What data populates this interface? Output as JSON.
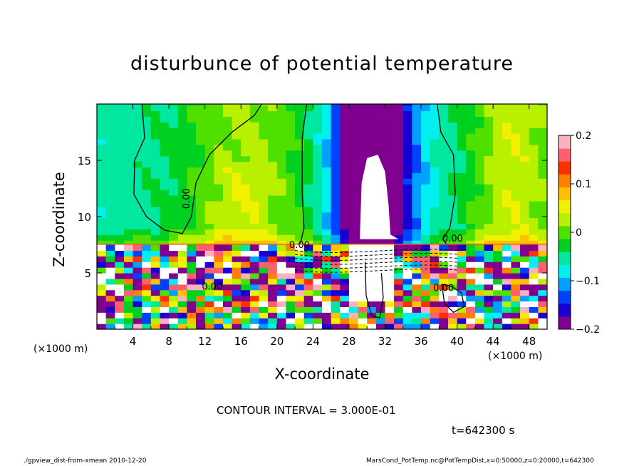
{
  "chart_data": {
    "type": "heatmap",
    "title": "disturbunce of potential temperature",
    "xlabel": "X-coordinate",
    "ylabel": "Z-coordinate",
    "x_units_label": "(×1000 m)",
    "y_units_label": "(×1000 m)",
    "xlim": [
      0,
      50
    ],
    "ylim": [
      0,
      20
    ],
    "x_ticks": [
      4,
      8,
      12,
      16,
      20,
      24,
      28,
      32,
      36,
      40,
      44,
      48
    ],
    "y_ticks": [
      5,
      10,
      15
    ],
    "colorbar": {
      "range": [
        -0.2,
        0.2
      ],
      "tick_values": [
        0.2,
        0.1,
        0,
        -0.1,
        -0.2
      ],
      "tick_labels": [
        "0.2",
        "0.1",
        "0",
        "−0.1",
        "−0.2"
      ],
      "colors": [
        "#800090",
        "#1a00d0",
        "#0040ff",
        "#00a0ff",
        "#00f0f0",
        "#00e8a0",
        "#00d020",
        "#50e000",
        "#b8f000",
        "#f0f000",
        "#ffc000",
        "#ff8000",
        "#ff3000",
        "#ff6070",
        "#ffb0c0"
      ]
    },
    "contour_interval": "CONTOUR INTERVAL = 3.000E-01",
    "contour_labels": [
      {
        "text": "0.00",
        "x": 10.3,
        "z": 11.6,
        "rotated": true
      },
      {
        "text": "0.00",
        "x": 22.5,
        "z": 7.2
      },
      {
        "text": "0.00",
        "x": 39.5,
        "z": 7.8
      },
      {
        "text": "0.00",
        "x": 12.8,
        "z": 3.5
      },
      {
        "text": "0.00",
        "x": 38.5,
        "z": 3.4
      }
    ],
    "time": "t=642300 s"
  },
  "footer": {
    "left": "./gpview_dist-from-xmean  2010-12-20",
    "right": "MarsCond_PotTemp.nc@PotTempDist,x=0:50000,z=0:20000,t=642300"
  }
}
